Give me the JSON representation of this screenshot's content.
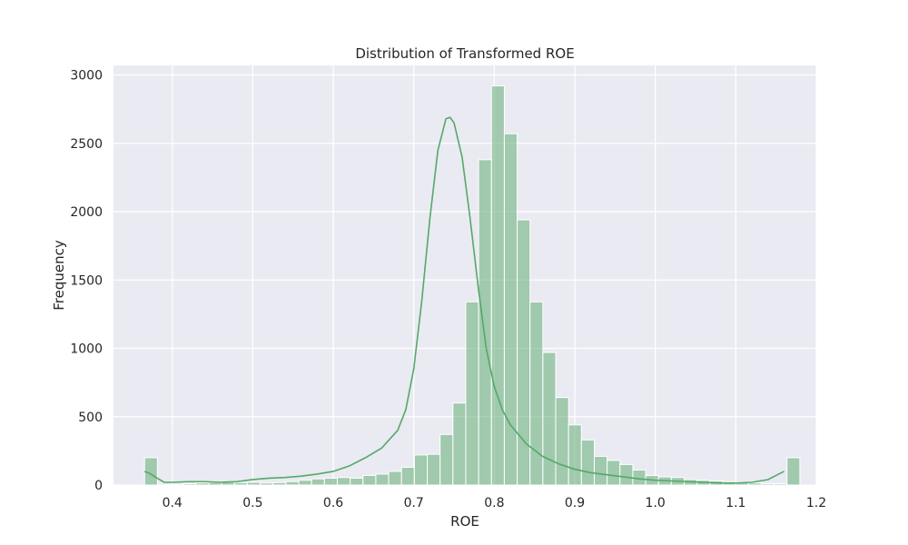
{
  "chart_data": {
    "type": "bar",
    "title": "Distribution of Transformed ROE",
    "xlabel": "ROE",
    "ylabel": "Frequency",
    "xlim": [
      0.327,
      1.2
    ],
    "ylim": [
      0,
      3070
    ],
    "x_ticks": [
      0.4,
      0.5,
      0.6,
      0.7,
      0.8,
      0.9,
      1.0,
      1.1,
      1.2
    ],
    "x_tick_labels": [
      "0.4",
      "0.5",
      "0.6",
      "0.7",
      "0.8",
      "0.9",
      "1.0",
      "1.1",
      "1.2"
    ],
    "y_ticks": [
      0,
      500,
      1000,
      1500,
      2000,
      2500,
      3000
    ],
    "y_tick_labels": [
      "0",
      "500",
      "1000",
      "1500",
      "2000",
      "2500",
      "3000"
    ],
    "grid": true,
    "bin_start": 0.3656,
    "bin_width": 0.01596,
    "counts": [
      200,
      0,
      0,
      10,
      15,
      18,
      20,
      18,
      20,
      15,
      18,
      25,
      35,
      45,
      50,
      55,
      50,
      70,
      80,
      100,
      130,
      220,
      225,
      370,
      600,
      1340,
      2380,
      2920,
      2570,
      1940,
      1340,
      970,
      640,
      440,
      330,
      210,
      180,
      150,
      110,
      70,
      60,
      55,
      40,
      35,
      30,
      25,
      20,
      15,
      10,
      10,
      200
    ],
    "kde": {
      "x": [
        0.3656,
        0.372,
        0.38,
        0.39,
        0.4,
        0.42,
        0.44,
        0.46,
        0.48,
        0.5,
        0.52,
        0.54,
        0.56,
        0.58,
        0.6,
        0.62,
        0.64,
        0.66,
        0.68,
        0.69,
        0.7,
        0.71,
        0.72,
        0.73,
        0.74,
        0.745,
        0.75,
        0.76,
        0.77,
        0.78,
        0.79,
        0.8,
        0.81,
        0.82,
        0.84,
        0.86,
        0.88,
        0.9,
        0.92,
        0.94,
        0.96,
        0.98,
        1.0,
        1.02,
        1.04,
        1.06,
        1.08,
        1.1,
        1.12,
        1.14,
        1.15,
        1.16
      ],
      "y": [
        100,
        85,
        55,
        20,
        20,
        25,
        25,
        20,
        25,
        40,
        50,
        55,
        65,
        80,
        100,
        140,
        200,
        270,
        400,
        550,
        850,
        1350,
        1950,
        2450,
        2680,
        2690,
        2650,
        2400,
        1950,
        1450,
        1000,
        720,
        550,
        440,
        300,
        210,
        155,
        115,
        90,
        75,
        60,
        45,
        35,
        30,
        25,
        20,
        15,
        15,
        20,
        40,
        70,
        100
      ]
    },
    "bar_color": "#55a868",
    "bar_opacity": 0.5,
    "line_color": "#55a868",
    "plot_bg": "#eaeaf2",
    "grid_color": "#ffffff"
  }
}
